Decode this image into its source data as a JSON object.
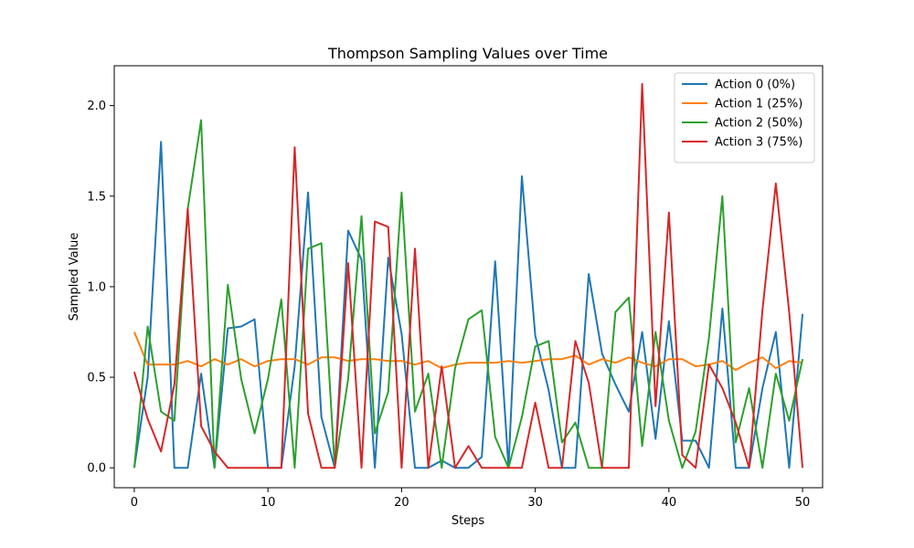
{
  "chart_data": {
    "type": "line",
    "title": "Thompson Sampling Values over Time",
    "xlabel": "Steps",
    "ylabel": "Sampled Value",
    "xlim": [
      -1.5,
      51.5
    ],
    "ylim": [
      -0.11,
      2.22
    ],
    "xticks": [
      0,
      10,
      20,
      30,
      40,
      50
    ],
    "yticks": [
      0.0,
      0.5,
      1.0,
      1.5,
      2.0
    ],
    "xtick_labels": [
      "0",
      "10",
      "20",
      "30",
      "40",
      "50"
    ],
    "ytick_labels": [
      "0.0",
      "0.5",
      "1.0",
      "1.5",
      "2.0"
    ],
    "grid": false,
    "legend_position": "top-right",
    "x": [
      0,
      1,
      2,
      3,
      4,
      5,
      6,
      7,
      8,
      9,
      10,
      11,
      12,
      13,
      14,
      15,
      16,
      17,
      18,
      19,
      20,
      21,
      22,
      23,
      24,
      25,
      26,
      27,
      28,
      29,
      30,
      31,
      32,
      33,
      34,
      35,
      36,
      37,
      38,
      39,
      40,
      41,
      42,
      43,
      44,
      45,
      46,
      47,
      48,
      49,
      50
    ],
    "series": [
      {
        "name": "Action 0 (0%)",
        "color": "#1f77b4",
        "values": [
          0.0,
          0.5,
          1.8,
          0.0,
          0.0,
          0.52,
          0.0,
          0.77,
          0.78,
          0.82,
          0.0,
          0.0,
          0.56,
          1.52,
          0.28,
          0.0,
          1.31,
          1.15,
          0.0,
          1.16,
          0.74,
          0.0,
          0.0,
          0.04,
          0.0,
          0.0,
          0.06,
          1.14,
          0.0,
          1.61,
          0.73,
          0.43,
          0.0,
          0.0,
          1.07,
          0.63,
          0.46,
          0.31,
          0.75,
          0.16,
          0.81,
          0.15,
          0.15,
          0.0,
          0.88,
          0.0,
          0.0,
          0.44,
          0.75,
          0.0,
          0.85
        ]
      },
      {
        "name": "Action 1 (25%)",
        "color": "#ff7f0e",
        "values": [
          0.75,
          0.57,
          0.57,
          0.57,
          0.59,
          0.56,
          0.6,
          0.57,
          0.6,
          0.56,
          0.59,
          0.6,
          0.6,
          0.57,
          0.61,
          0.61,
          0.59,
          0.6,
          0.6,
          0.59,
          0.59,
          0.57,
          0.59,
          0.55,
          0.57,
          0.58,
          0.58,
          0.58,
          0.59,
          0.58,
          0.59,
          0.6,
          0.6,
          0.62,
          0.57,
          0.6,
          0.58,
          0.61,
          0.58,
          0.56,
          0.6,
          0.6,
          0.56,
          0.57,
          0.59,
          0.54,
          0.58,
          0.61,
          0.55,
          0.59,
          0.58
        ]
      },
      {
        "name": "Action 2 (50%)",
        "color": "#2ca02c",
        "values": [
          0.0,
          0.78,
          0.31,
          0.26,
          1.43,
          1.92,
          0.0,
          1.01,
          0.49,
          0.19,
          0.49,
          0.93,
          0.0,
          1.21,
          1.24,
          0.0,
          0.49,
          1.39,
          0.19,
          0.42,
          1.52,
          0.31,
          0.52,
          0.0,
          0.55,
          0.82,
          0.87,
          0.17,
          0.0,
          0.28,
          0.67,
          0.7,
          0.14,
          0.25,
          0.0,
          0.0,
          0.86,
          0.94,
          0.12,
          0.75,
          0.26,
          0.0,
          0.2,
          0.72,
          1.5,
          0.14,
          0.44,
          0.0,
          0.52,
          0.26,
          0.6
        ]
      },
      {
        "name": "Action 3 (75%)",
        "color": "#d62728",
        "values": [
          0.53,
          0.27,
          0.09,
          0.46,
          1.43,
          0.23,
          0.09,
          0.0,
          0.0,
          0.0,
          0.0,
          0.0,
          1.77,
          0.3,
          0.0,
          0.0,
          1.13,
          0.0,
          1.36,
          1.33,
          0.0,
          1.21,
          0.0,
          0.56,
          0.0,
          0.12,
          0.0,
          0.0,
          0.0,
          0.0,
          0.36,
          0.0,
          0.0,
          0.7,
          0.47,
          0.0,
          0.0,
          0.0,
          2.12,
          0.34,
          1.41,
          0.07,
          0.0,
          0.57,
          0.44,
          0.25,
          0.0,
          0.87,
          1.57,
          0.86,
          0.0
        ]
      }
    ]
  }
}
